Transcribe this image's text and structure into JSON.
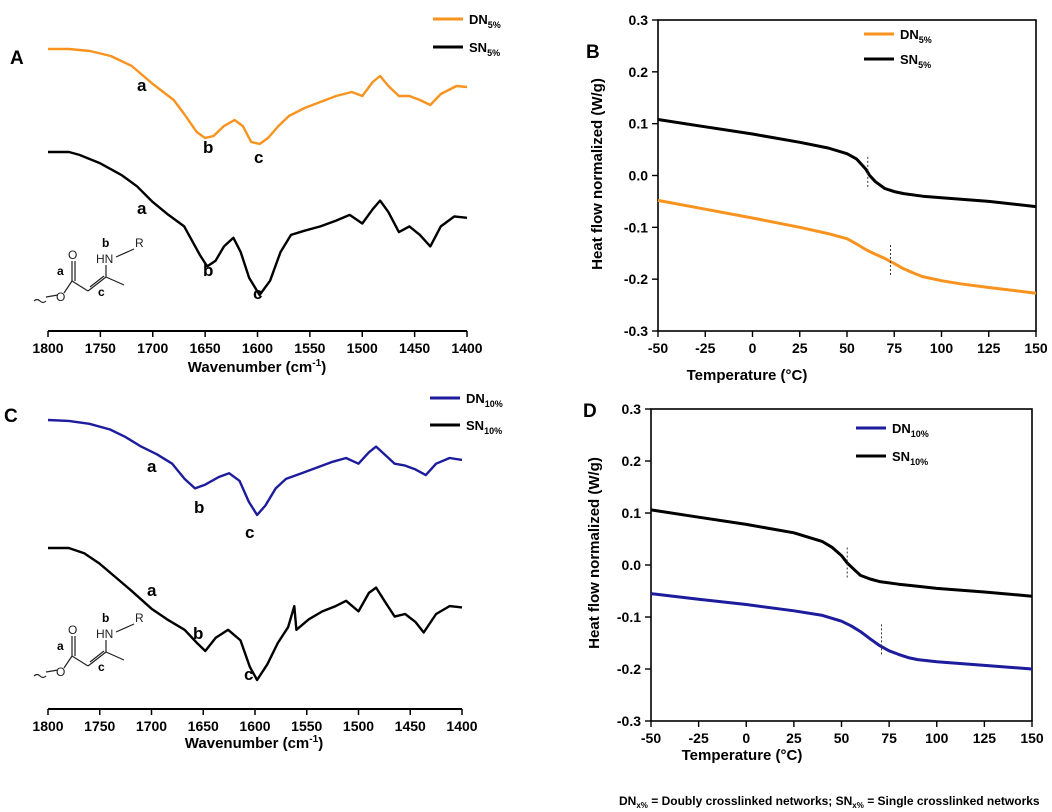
{
  "colors": {
    "dn5": "#F7931E",
    "dn10": "#1C1C9C",
    "sn": "#000000",
    "axis": "#000000"
  },
  "footnote": {
    "dn": "DN",
    "sub": "x%",
    "dn_text": " = Doubly crosslinked networks; ",
    "sn": "SN",
    "sn_text": " = Single crosslinked networks"
  },
  "chemical_structure": {
    "atoms": [
      "HN",
      "R",
      "O",
      "O"
    ],
    "labels": [
      "a",
      "b",
      "c"
    ]
  },
  "chart_data": [
    {
      "panel": "A",
      "type": "line",
      "xlabel": "Wavenumber (cm",
      "xlabel_sup": "-1",
      "xlabel_close": ")",
      "ylabel": "",
      "xlim": [
        1800,
        1400
      ],
      "xticks": [
        "1800",
        "1750",
        "1700",
        "1650",
        "1600",
        "1550",
        "1500",
        "1450",
        "1400"
      ],
      "series": [
        {
          "name": "DN",
          "sub": "5%",
          "color": "#F7931E",
          "points": [
            [
              1800,
              0.05
            ],
            [
              1780,
              0.05
            ],
            [
              1760,
              0.07
            ],
            [
              1740,
              0.12
            ],
            [
              1720,
              0.22
            ],
            [
              1700,
              0.4
            ],
            [
              1680,
              0.56
            ],
            [
              1670,
              0.7
            ],
            [
              1658,
              0.88
            ],
            [
              1650,
              0.94
            ],
            [
              1642,
              0.92
            ],
            [
              1632,
              0.82
            ],
            [
              1622,
              0.76
            ],
            [
              1614,
              0.82
            ],
            [
              1606,
              0.98
            ],
            [
              1598,
              1.0
            ],
            [
              1590,
              0.94
            ],
            [
              1580,
              0.82
            ],
            [
              1570,
              0.72
            ],
            [
              1555,
              0.64
            ],
            [
              1540,
              0.58
            ],
            [
              1525,
              0.52
            ],
            [
              1510,
              0.48
            ],
            [
              1500,
              0.52
            ],
            [
              1490,
              0.38
            ],
            [
              1483,
              0.32
            ],
            [
              1475,
              0.42
            ],
            [
              1465,
              0.52
            ],
            [
              1455,
              0.52
            ],
            [
              1445,
              0.56
            ],
            [
              1435,
              0.61
            ],
            [
              1425,
              0.5
            ],
            [
              1410,
              0.42
            ],
            [
              1400,
              0.43
            ]
          ]
        },
        {
          "name": "SN",
          "sub": "5%",
          "color": "#000000",
          "points": [
            [
              1800,
              0.0
            ],
            [
              1780,
              0.0
            ],
            [
              1770,
              0.02
            ],
            [
              1750,
              0.08
            ],
            [
              1730,
              0.16
            ],
            [
              1715,
              0.24
            ],
            [
              1700,
              0.35
            ],
            [
              1685,
              0.44
            ],
            [
              1670,
              0.52
            ],
            [
              1655,
              0.72
            ],
            [
              1648,
              0.8
            ],
            [
              1640,
              0.76
            ],
            [
              1632,
              0.66
            ],
            [
              1623,
              0.6
            ],
            [
              1616,
              0.7
            ],
            [
              1608,
              0.88
            ],
            [
              1598,
              1.0
            ],
            [
              1588,
              0.9
            ],
            [
              1578,
              0.7
            ],
            [
              1568,
              0.58
            ],
            [
              1555,
              0.55
            ],
            [
              1540,
              0.52
            ],
            [
              1525,
              0.48
            ],
            [
              1512,
              0.44
            ],
            [
              1500,
              0.5
            ],
            [
              1490,
              0.4
            ],
            [
              1483,
              0.34
            ],
            [
              1475,
              0.42
            ],
            [
              1465,
              0.56
            ],
            [
              1455,
              0.52
            ],
            [
              1445,
              0.58
            ],
            [
              1435,
              0.66
            ],
            [
              1425,
              0.52
            ],
            [
              1412,
              0.45
            ],
            [
              1400,
              0.46
            ]
          ]
        }
      ],
      "annotations": [
        "a",
        "b",
        "c",
        "a",
        "b",
        "c"
      ]
    },
    {
      "panel": "B",
      "type": "line",
      "xlabel": "Temperature (°C)",
      "ylabel": "Heat flow normalized (W/g)",
      "xlim": [
        -50,
        150
      ],
      "ylim": [
        -0.3,
        0.3
      ],
      "xticks": [
        "-50",
        "-25",
        "0",
        "25",
        "50",
        "75",
        "100",
        "125",
        "150"
      ],
      "yticks": [
        "-0.3",
        "-0.2",
        "-0.1",
        "0.0",
        "0.1",
        "0.2",
        "0.3"
      ],
      "series": [
        {
          "name": "DN",
          "sub": "5%",
          "color": "#F7931E",
          "x": [
            -50,
            -25,
            0,
            25,
            40,
            50,
            55,
            60,
            65,
            70,
            75,
            80,
            85,
            90,
            100,
            110,
            125,
            150
          ],
          "y": [
            -0.048,
            -0.065,
            -0.082,
            -0.1,
            -0.112,
            -0.122,
            -0.132,
            -0.143,
            -0.152,
            -0.16,
            -0.17,
            -0.18,
            -0.188,
            -0.195,
            -0.203,
            -0.209,
            -0.216,
            -0.227
          ]
        },
        {
          "name": "SN",
          "sub": "5%",
          "color": "#000000",
          "x": [
            -50,
            -25,
            0,
            25,
            40,
            50,
            55,
            60,
            62,
            65,
            70,
            75,
            80,
            90,
            100,
            125,
            150
          ],
          "y": [
            0.108,
            0.094,
            0.08,
            0.064,
            0.053,
            0.042,
            0.032,
            0.012,
            0.0,
            -0.012,
            -0.025,
            -0.031,
            -0.035,
            -0.04,
            -0.043,
            -0.05,
            -0.06
          ]
        }
      ],
      "tg_markers": [
        {
          "x": 61,
          "y": 0.005
        },
        {
          "x": 73,
          "y": -0.165
        }
      ]
    },
    {
      "panel": "C",
      "type": "line",
      "xlabel": "Wavenumber (cm",
      "xlabel_sup": "-1",
      "xlabel_close": ")",
      "ylabel": "",
      "xlim": [
        1800,
        1400
      ],
      "xticks": [
        "1800",
        "1750",
        "1700",
        "1650",
        "1600",
        "1550",
        "1500",
        "1450",
        "1400"
      ],
      "series": [
        {
          "name": "DN",
          "sub": "10%",
          "color": "#1C1C9C",
          "points": [
            [
              1800,
              0.0
            ],
            [
              1780,
              0.01
            ],
            [
              1760,
              0.04
            ],
            [
              1740,
              0.1
            ],
            [
              1725,
              0.18
            ],
            [
              1710,
              0.28
            ],
            [
              1695,
              0.36
            ],
            [
              1680,
              0.46
            ],
            [
              1668,
              0.62
            ],
            [
              1658,
              0.72
            ],
            [
              1648,
              0.68
            ],
            [
              1635,
              0.6
            ],
            [
              1625,
              0.56
            ],
            [
              1615,
              0.64
            ],
            [
              1606,
              0.86
            ],
            [
              1598,
              1.0
            ],
            [
              1590,
              0.9
            ],
            [
              1580,
              0.72
            ],
            [
              1570,
              0.62
            ],
            [
              1555,
              0.56
            ],
            [
              1540,
              0.5
            ],
            [
              1525,
              0.44
            ],
            [
              1512,
              0.4
            ],
            [
              1500,
              0.46
            ],
            [
              1490,
              0.34
            ],
            [
              1483,
              0.28
            ],
            [
              1475,
              0.36
            ],
            [
              1465,
              0.46
            ],
            [
              1455,
              0.48
            ],
            [
              1445,
              0.52
            ],
            [
              1435,
              0.58
            ],
            [
              1425,
              0.46
            ],
            [
              1412,
              0.4
            ],
            [
              1400,
              0.42
            ]
          ]
        },
        {
          "name": "SN",
          "sub": "10%",
          "color": "#000000",
          "points": [
            [
              1800,
              0.0
            ],
            [
              1780,
              0.0
            ],
            [
              1765,
              0.04
            ],
            [
              1750,
              0.12
            ],
            [
              1735,
              0.22
            ],
            [
              1720,
              0.32
            ],
            [
              1700,
              0.46
            ],
            [
              1685,
              0.54
            ],
            [
              1668,
              0.62
            ],
            [
              1656,
              0.72
            ],
            [
              1648,
              0.78
            ],
            [
              1638,
              0.68
            ],
            [
              1626,
              0.62
            ],
            [
              1614,
              0.7
            ],
            [
              1605,
              0.9
            ],
            [
              1598,
              1.0
            ],
            [
              1588,
              0.88
            ],
            [
              1578,
              0.72
            ],
            [
              1568,
              0.6
            ],
            [
              1562,
              0.44
            ],
            [
              1560,
              0.62
            ],
            [
              1548,
              0.54
            ],
            [
              1535,
              0.48
            ],
            [
              1522,
              0.44
            ],
            [
              1512,
              0.4
            ],
            [
              1500,
              0.48
            ],
            [
              1490,
              0.34
            ],
            [
              1483,
              0.3
            ],
            [
              1475,
              0.4
            ],
            [
              1465,
              0.52
            ],
            [
              1455,
              0.5
            ],
            [
              1445,
              0.56
            ],
            [
              1437,
              0.64
            ],
            [
              1425,
              0.5
            ],
            [
              1412,
              0.44
            ],
            [
              1400,
              0.45
            ]
          ]
        }
      ],
      "annotations": [
        "a",
        "b",
        "c",
        "a",
        "b",
        "c"
      ]
    },
    {
      "panel": "D",
      "type": "line",
      "xlabel": "Temperature (°C)",
      "ylabel": "Heat flow normalized (W/g)",
      "xlim": [
        -50,
        150
      ],
      "ylim": [
        -0.3,
        0.3
      ],
      "xticks": [
        "-50",
        "-25",
        "0",
        "25",
        "50",
        "75",
        "100",
        "125",
        "150"
      ],
      "yticks": [
        "-0.3",
        "-0.2",
        "-0.1",
        "0.0",
        "0.1",
        "0.2",
        "0.3"
      ],
      "series": [
        {
          "name": "DN",
          "sub": "10%",
          "color": "#1C1C9C",
          "x": [
            -50,
            -25,
            0,
            25,
            40,
            50,
            55,
            60,
            65,
            70,
            75,
            80,
            85,
            90,
            100,
            125,
            150
          ],
          "y": [
            -0.055,
            -0.066,
            -0.076,
            -0.088,
            -0.097,
            -0.108,
            -0.117,
            -0.128,
            -0.142,
            -0.155,
            -0.165,
            -0.172,
            -0.178,
            -0.182,
            -0.186,
            -0.193,
            -0.2
          ]
        },
        {
          "name": "SN",
          "sub": "10%",
          "color": "#000000",
          "x": [
            -50,
            -25,
            0,
            25,
            40,
            45,
            50,
            53,
            57,
            60,
            65,
            70,
            80,
            90,
            100,
            125,
            150
          ],
          "y": [
            0.106,
            0.092,
            0.078,
            0.062,
            0.045,
            0.034,
            0.018,
            0.004,
            -0.01,
            -0.02,
            -0.027,
            -0.032,
            -0.037,
            -0.041,
            -0.045,
            -0.052,
            -0.06
          ]
        }
      ],
      "tg_markers": [
        {
          "x": 53,
          "y": 0.003
        },
        {
          "x": 71,
          "y": -0.145
        }
      ]
    }
  ]
}
